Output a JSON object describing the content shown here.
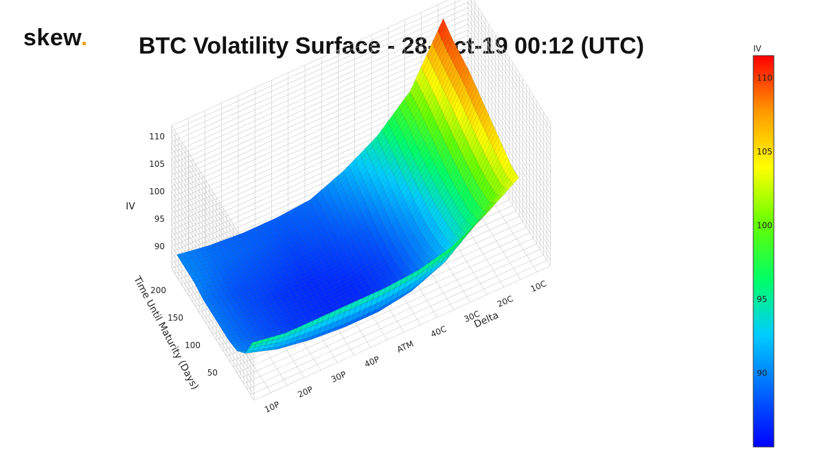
{
  "logo": {
    "text": "skew",
    "dot": "."
  },
  "chart_data": {
    "type": "surface",
    "title": "BTC Volatility Surface - 28-Oct-19 00:12 (UTC)",
    "xlabel": "Delta",
    "ylabel": "Time Until Maturity (Days)",
    "zlabel": "IV",
    "x_ticks": [
      "10P",
      "20P",
      "30P",
      "40P",
      "ATM",
      "40C",
      "30C",
      "20C",
      "10C"
    ],
    "y_ticks": [
      50,
      100,
      150,
      200
    ],
    "z_ticks": [
      90,
      95,
      100,
      105,
      110
    ],
    "zlim": [
      86,
      111
    ],
    "maturities": [
      5,
      25,
      50,
      75,
      100,
      125,
      150,
      175,
      200,
      225
    ],
    "series": [
      {
        "maturity": 5,
        "iv": [
          96,
          95,
          95,
          95,
          95,
          95.5,
          97,
          100,
          104
        ]
      },
      {
        "maturity": 25,
        "iv": [
          92,
          90,
          89,
          88.5,
          88.5,
          89.5,
          92,
          97,
          104
        ]
      },
      {
        "maturity": 50,
        "iv": [
          90,
          88.5,
          87.5,
          87,
          87,
          88,
          91,
          96,
          105
        ]
      },
      {
        "maturity": 75,
        "iv": [
          89.5,
          88,
          87,
          86.5,
          86.5,
          87.5,
          90.5,
          96,
          106
        ]
      },
      {
        "maturity": 100,
        "iv": [
          89.5,
          88,
          87,
          86.5,
          86.5,
          87.5,
          90.5,
          96.5,
          107
        ]
      },
      {
        "maturity": 125,
        "iv": [
          89.5,
          88,
          87,
          86.5,
          87,
          88,
          91,
          97,
          108
        ]
      },
      {
        "maturity": 150,
        "iv": [
          89.5,
          88,
          87.5,
          87,
          87.5,
          88.5,
          92,
          98,
          109
        ]
      },
      {
        "maturity": 175,
        "iv": [
          90,
          88.5,
          88,
          87.5,
          88,
          89.5,
          93,
          99,
          109.5
        ]
      },
      {
        "maturity": 200,
        "iv": [
          90,
          89,
          88.5,
          88,
          88.5,
          90.5,
          94,
          100,
          110
        ]
      },
      {
        "maturity": 225,
        "iv": [
          90,
          89,
          88.5,
          88.5,
          89,
          91.5,
          95,
          100.5,
          111
        ]
      }
    ],
    "colorbar": {
      "label": "IV",
      "ticks": [
        90,
        95,
        100,
        105,
        110
      ],
      "range": [
        85,
        111.5
      ]
    },
    "colorscale": [
      "#0000ff",
      "#0066ff",
      "#00ccff",
      "#00ff66",
      "#66ff00",
      "#ffff00",
      "#ff9900",
      "#ff0000"
    ]
  }
}
